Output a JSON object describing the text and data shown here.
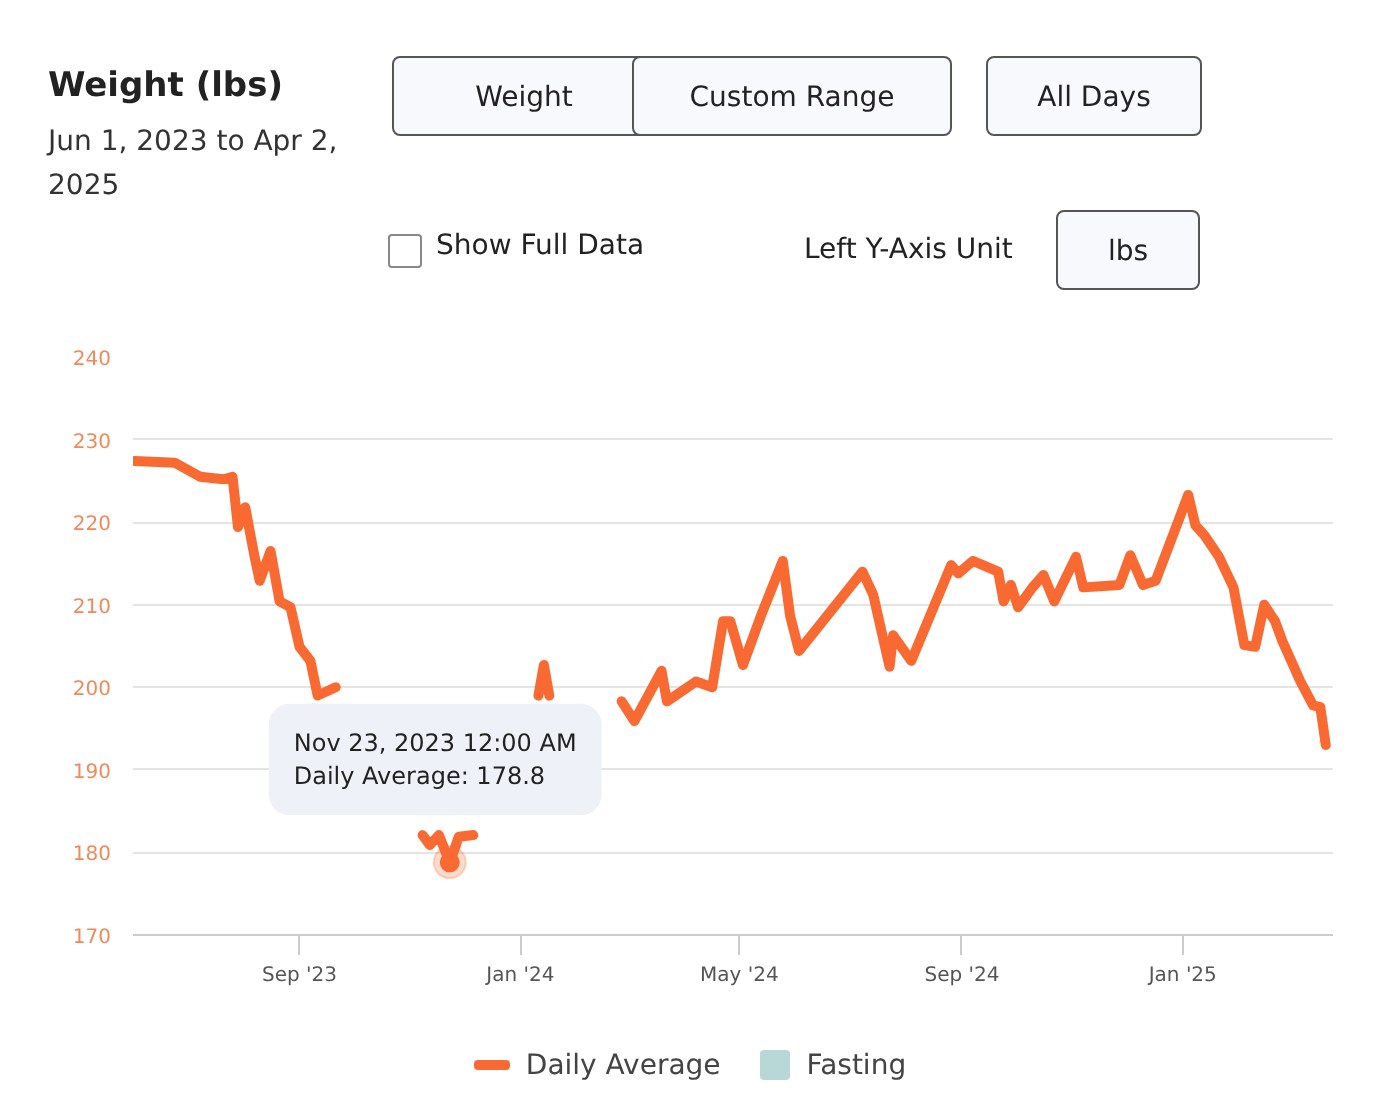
{
  "chart_data": {
    "type": "line",
    "title": "Weight (lbs)",
    "subtitle": "Jun 1, 2023 to Apr 2, 2025",
    "xlim": [
      "2023-06-01",
      "2025-03-25"
    ],
    "ylim": [
      170,
      240
    ],
    "xticks": [
      {
        "value": "2023-09-01",
        "label": "Sep '23"
      },
      {
        "value": "2024-01-01",
        "label": "Jan '24"
      },
      {
        "value": "2024-05-01",
        "label": "May '24"
      },
      {
        "value": "2024-09-01",
        "label": "Sep '24"
      },
      {
        "value": "2025-01-01",
        "label": "Jan '25"
      }
    ],
    "yticks": [
      170,
      180,
      190,
      200,
      210,
      220,
      230,
      240
    ],
    "grid": "y",
    "legend": "bottom",
    "x": [
      "2023-06-02",
      "2023-06-24",
      "2023-07-08",
      "2023-07-21",
      "2023-07-26",
      "2023-07-29",
      "2023-08-02",
      "2023-08-07",
      "2023-08-10",
      "2023-08-16",
      "2023-08-21",
      "2023-08-27",
      "2023-09-01",
      "2023-09-07",
      "2023-09-11",
      "2023-09-21",
      "2023-10-15",
      "2023-11-08",
      "2023-11-12",
      "2023-11-17",
      "2023-11-23",
      "2023-11-28",
      "2023-12-06",
      "2023-12-20",
      "2024-01-11",
      "2024-01-14",
      "2024-01-17",
      "2024-02-05",
      "2024-02-26",
      "2024-03-04",
      "2024-03-19",
      "2024-03-22",
      "2024-04-07",
      "2024-04-16",
      "2024-04-22",
      "2024-04-26",
      "2024-05-03",
      "2024-05-13",
      "2024-05-25",
      "2024-05-29",
      "2024-06-03",
      "2024-07-08",
      "2024-07-14",
      "2024-07-18",
      "2024-07-23",
      "2024-07-25",
      "2024-08-04",
      "2024-08-26",
      "2024-08-30",
      "2024-09-07",
      "2024-09-21",
      "2024-09-24",
      "2024-09-28",
      "2024-10-02",
      "2024-10-10",
      "2024-10-16",
      "2024-10-22",
      "2024-11-03",
      "2024-11-07",
      "2024-11-27",
      "2024-12-03",
      "2024-12-10",
      "2024-12-17",
      "2025-01-04",
      "2025-01-08",
      "2025-01-13",
      "2025-01-21",
      "2025-01-29",
      "2025-02-04",
      "2025-02-10",
      "2025-02-15",
      "2025-02-21",
      "2025-02-25",
      "2025-03-07",
      "2025-03-14",
      "2025-03-18",
      "2025-03-21"
    ],
    "series": [
      {
        "name": "Daily Average",
        "color": "#f96a32",
        "values": [
          227.4,
          227.2,
          225.5,
          225.2,
          225.5,
          219.4,
          221.8,
          216,
          212.9,
          216.5,
          210.4,
          209.7,
          204.9,
          203.2,
          199,
          200,
          null,
          182.1,
          180.9,
          182.1,
          178.8,
          181.9,
          182.1,
          null,
          199,
          202.7,
          199,
          null,
          198.3,
          195.9,
          202,
          198.3,
          200.7,
          200,
          208,
          208,
          202.7,
          208.7,
          215.3,
          208.7,
          204.4,
          214,
          211.2,
          207.3,
          202.5,
          206.3,
          203.2,
          214.8,
          213.8,
          215.3,
          214,
          210.4,
          212.4,
          209.7,
          212.1,
          213.6,
          210.4,
          215.8,
          212.1,
          212.4,
          216,
          212.4,
          212.9,
          223.3,
          219.6,
          218.4,
          215.8,
          212.1,
          205.1,
          204.9,
          210,
          208,
          205.6,
          200.7,
          197.8,
          197.6,
          193
        ]
      },
      {
        "name": "Fasting",
        "type": "area",
        "color": "#b8d8d8",
        "values": [
          null,
          null,
          null,
          null,
          null,
          null,
          null,
          null,
          null,
          null,
          null,
          null,
          null,
          null,
          null,
          null,
          null,
          null,
          null,
          null,
          null,
          null,
          null,
          null,
          null,
          null,
          null,
          null,
          null,
          null,
          null,
          null,
          null,
          null,
          null,
          null,
          null,
          null,
          null,
          null,
          null,
          null,
          null,
          null,
          null,
          null,
          null,
          null,
          null,
          null,
          null,
          null,
          null,
          null,
          null,
          null,
          null,
          null,
          null,
          null,
          null,
          null,
          null,
          null,
          null,
          null,
          null,
          null,
          null,
          null,
          null,
          null,
          null,
          null,
          null,
          null,
          null
        ]
      }
    ],
    "annotations": [
      {
        "text": "Nov 23, 2023 12:00 AM\nDaily Average: 178.8",
        "x": "2023-11-23",
        "y": 178.8
      },
      "Weight",
      "Custom Range",
      "All Days",
      "Show Full Data",
      "Left Y-Axis Unit",
      "lbs"
    ]
  }
}
